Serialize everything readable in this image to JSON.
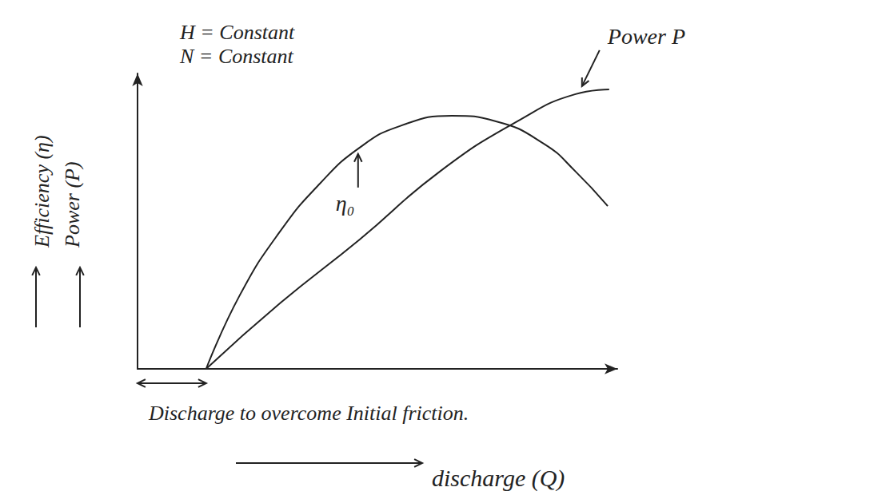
{
  "chart_data": {
    "type": "line",
    "x_label": "discharge (Q)",
    "y_labels": [
      "Efficiency (η)",
      "Power (P)"
    ],
    "annotations": [
      "H = Constant",
      "N = Constant",
      "Discharge to overcome Initial friction."
    ],
    "xlim": [
      0,
      100
    ],
    "ylim": [
      0,
      100
    ],
    "tick_labels": false,
    "grid": false,
    "series": [
      {
        "name": "η₀",
        "color": "#222222",
        "x": [
          14.3,
          21.3,
          29.7,
          38,
          46.3,
          54.7,
          65.5,
          74.7,
          84.7,
          91.3,
          98
        ],
        "values": [
          0,
          24.9,
          46.5,
          62.7,
          74.9,
          82.2,
          85.7,
          83.8,
          76.2,
          66.8,
          55.1
        ]
      },
      {
        "name": "Power P",
        "color": "#222222",
        "x": [
          14.3,
          29.7,
          46.3,
          63,
          79.7,
          91.3,
          98.3
        ],
        "values": [
          0,
          22.2,
          43.8,
          66.8,
          84.3,
          93,
          94.6
        ]
      }
    ]
  }
}
